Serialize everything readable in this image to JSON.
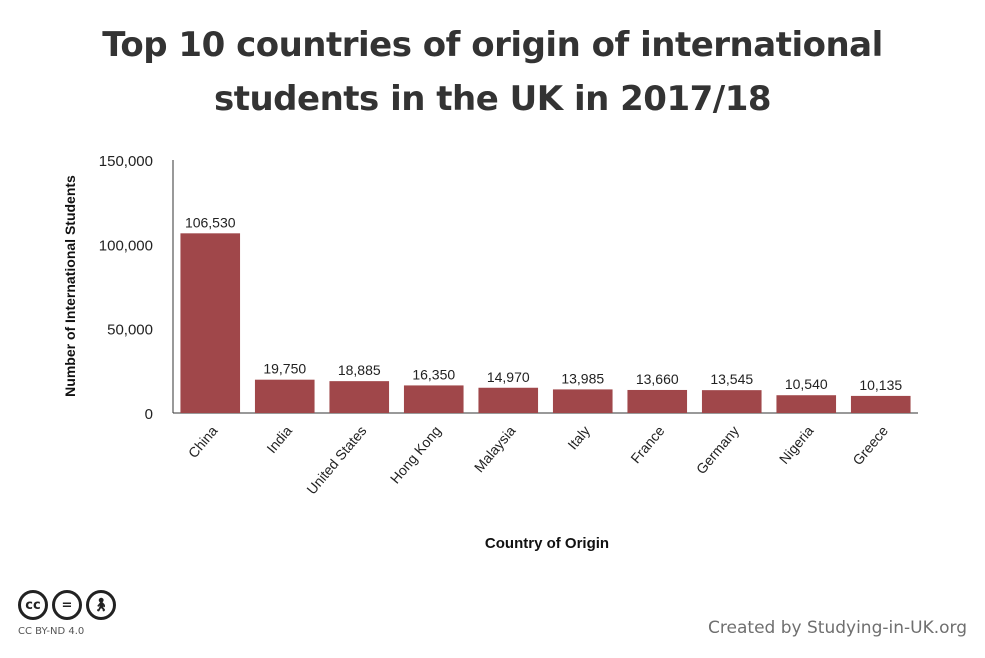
{
  "title_line1": "Top 10 countries of origin of international",
  "title_line2": "students in the UK in 2017/18",
  "footer_credit": "Created by Studying-in-UK.org",
  "license_label": "CC BY-ND 4.0",
  "license_icons": [
    "cc-icon",
    "no-derivatives-icon",
    "attribution-icon"
  ],
  "colors": {
    "bar": "#a0474a",
    "title": "#333333",
    "axis": "#333333"
  },
  "chart_data": {
    "type": "bar",
    "title": "Top 10 countries of origin of international students in the UK in 2017/18",
    "xlabel": "Country of Origin",
    "ylabel": "Number of International Students",
    "categories": [
      "China",
      "India",
      "United States",
      "Hong Kong",
      "Malaysia",
      "Italy",
      "France",
      "Germany",
      "Nigeria",
      "Greece"
    ],
    "values": [
      106530,
      19750,
      18885,
      16350,
      14970,
      13985,
      13660,
      13545,
      10540,
      10135
    ],
    "value_labels": [
      "106,530",
      "19,750",
      "18,885",
      "16,350",
      "14,970",
      "13,985",
      "13,660",
      "13,545",
      "10,540",
      "10,135"
    ],
    "yticks": [
      0,
      50000,
      100000,
      150000
    ],
    "ytick_labels": [
      "0",
      "50,000",
      "100,000",
      "150,000"
    ],
    "ylim": [
      0,
      150000
    ],
    "grid": false,
    "legend": "none"
  }
}
